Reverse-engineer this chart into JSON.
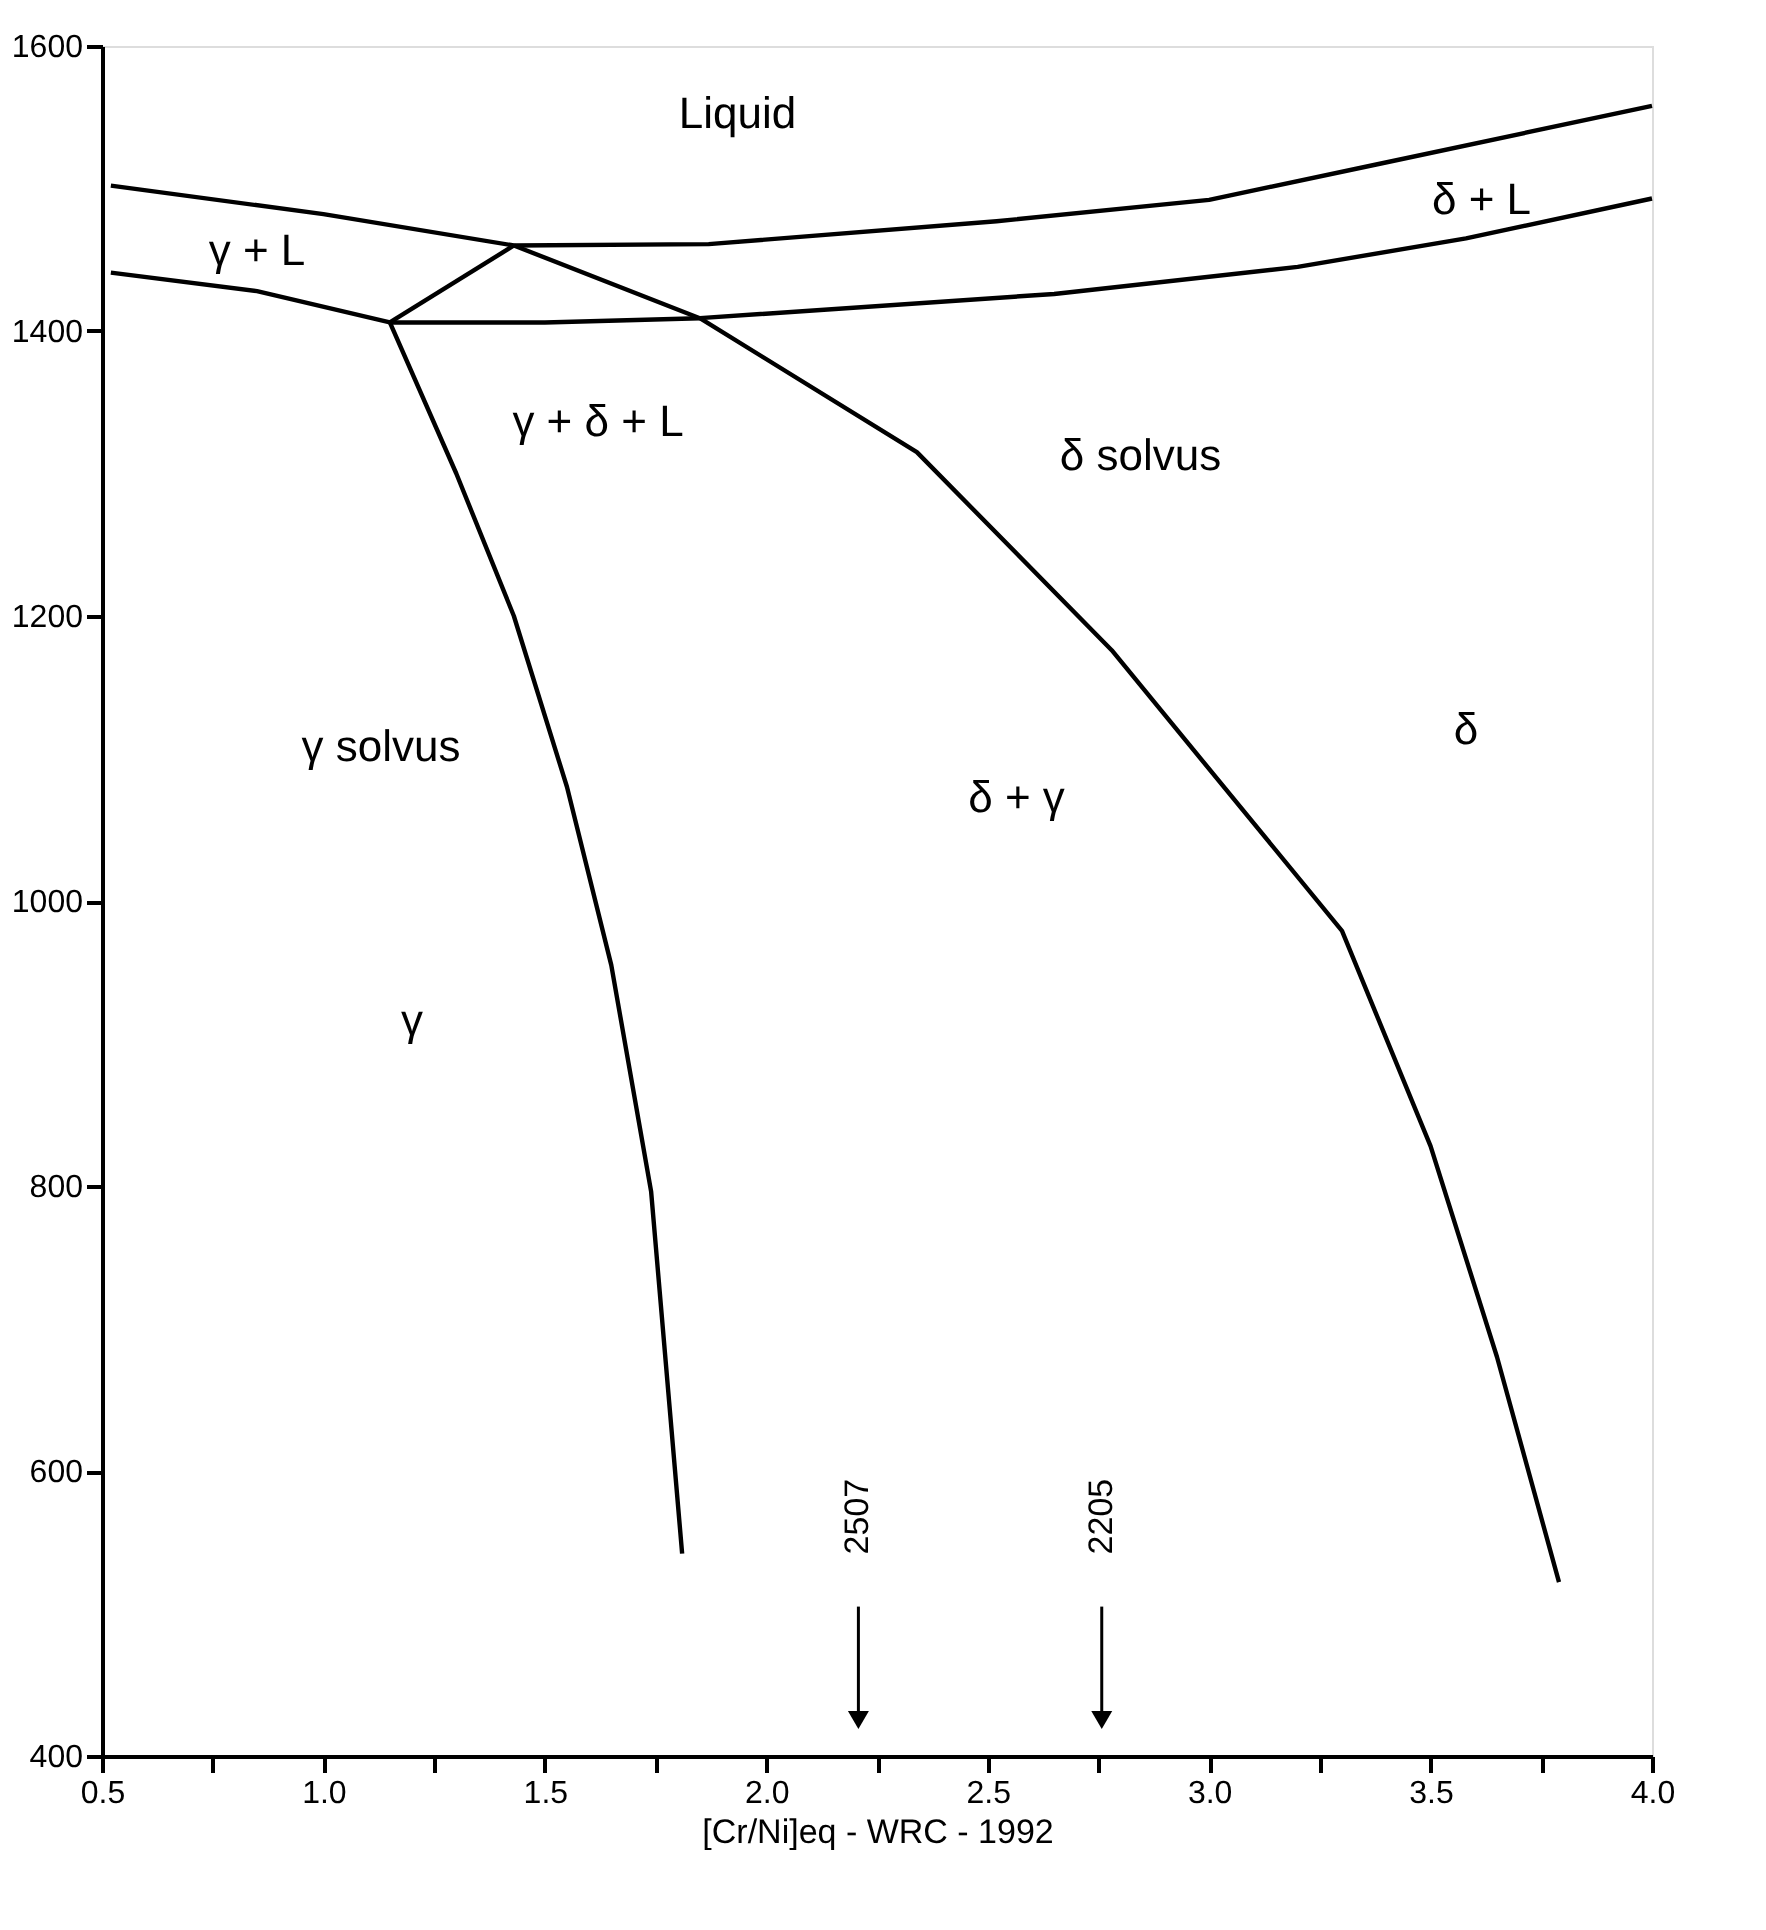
{
  "chart_data": {
    "type": "line",
    "xlabel": "[Cr/Ni]eq - WRC - 1992",
    "xlim": [
      0.5,
      4.0
    ],
    "ylim": [
      400,
      1600
    ],
    "xticks": [
      0.5,
      {
        "value": 0.75,
        "label": null
      },
      {
        "value": 1.0,
        "label": "1.0"
      },
      {
        "value": 1.25,
        "label": null
      },
      1.5,
      {
        "value": 1.75,
        "label": null
      },
      {
        "value": 2.0,
        "label": "2.0"
      },
      {
        "value": 2.25,
        "label": null
      },
      2.5,
      {
        "value": 2.75,
        "label": null
      },
      {
        "value": 3.0,
        "label": "3.0"
      },
      {
        "value": 3.25,
        "label": null
      },
      3.5,
      {
        "value": 3.75,
        "label": null
      },
      {
        "value": 4.0,
        "label": "4.0"
      }
    ],
    "yticks": [
      400,
      600,
      800,
      1000,
      1200,
      1400,
      1600
    ],
    "grid": false,
    "marker": "none",
    "line_style": "solid",
    "series": [
      {
        "color": "#000000",
        "x": [
          0.52,
          1.0,
          1.43,
          1.87,
          2.52,
          3.0,
          3.38,
          4.0
        ],
        "values": [
          1502,
          1482,
          1460,
          1461,
          1477,
          1492,
          1517,
          1558
        ]
      },
      {
        "color": "#000000",
        "x": [
          0.52,
          0.85,
          1.15,
          1.5,
          1.85,
          2.65,
          3.2,
          3.58,
          4.0
        ],
        "values": [
          1441,
          1428,
          1406,
          1406,
          1409,
          1426,
          1445,
          1465,
          1493
        ]
      },
      {
        "color": "#000000",
        "x": [
          1.15,
          1.43
        ],
        "values": [
          1406,
          1460
        ]
      },
      {
        "color": "#000000",
        "x": [
          1.15,
          1.3,
          1.43,
          1.55,
          1.65,
          1.74,
          1.81
        ],
        "values": [
          1406,
          1300,
          1200,
          1080,
          955,
          796,
          542
        ]
      },
      {
        "color": "#000000",
        "x": [
          1.43,
          1.85,
          2.34,
          2.78,
          3.3,
          3.5,
          3.65,
          3.79
        ],
        "values": [
          1460,
          1409,
          1315,
          1176,
          979,
          828,
          680,
          522
        ]
      }
    ],
    "annotations": [
      "Liquid",
      "γ + L",
      "δ + L",
      "γ + δ + L",
      "δ solvus",
      "γ solvus",
      "δ + γ",
      "δ",
      "γ",
      "2507",
      "2205"
    ]
  }
}
